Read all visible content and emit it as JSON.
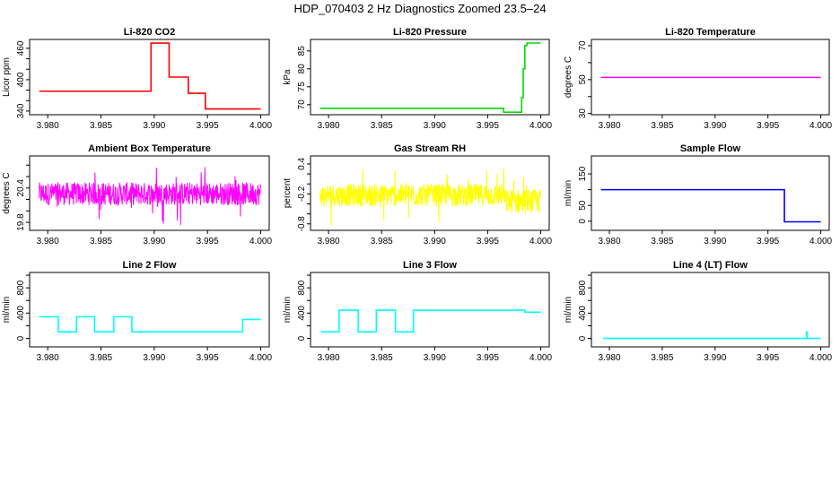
{
  "title": "HDP_070403  2 Hz Diagnostics Zoomed 23.5–24",
  "chart_data": [
    {
      "type": "line",
      "title": "Li-820 CO2",
      "ylabel": "Licor ppm",
      "xlabel": "",
      "color": "#ff0000",
      "xlim": [
        3.9783,
        4.0008
      ],
      "ylim": [
        333,
        477
      ],
      "x_ticks": [
        "3.980",
        "3.985",
        "3.990",
        "3.995",
        "4.000"
      ],
      "y_ticks": [
        340,
        360,
        380,
        400,
        420,
        440,
        460
      ],
      "y_tick_labels": [
        "340",
        "400",
        "460"
      ],
      "step_points": [
        [
          3.9792,
          378
        ],
        [
          3.9897,
          470
        ],
        [
          3.9914,
          405
        ],
        [
          3.9932,
          374
        ],
        [
          3.9948,
          344
        ],
        [
          3.9982,
          344
        ],
        [
          4.0,
          344
        ]
      ]
    },
    {
      "type": "line",
      "title": "Li-820 Pressure",
      "ylabel": "kPa",
      "xlabel": "",
      "color": "#00dd00",
      "xlim": [
        3.9783,
        4.0008
      ],
      "ylim": [
        67.2,
        88.2
      ],
      "x_ticks": [
        "3.980",
        "3.985",
        "3.990",
        "3.995",
        "4.000"
      ],
      "y_ticks": [
        70,
        75,
        80,
        85
      ],
      "y_tick_labels": [
        "70",
        "75",
        "80",
        "85"
      ],
      "step_points": [
        [
          3.9792,
          69.0
        ],
        [
          3.9965,
          67.9
        ],
        [
          3.9982,
          72.0
        ],
        [
          3.99835,
          80.0
        ],
        [
          3.9985,
          86.5
        ],
        [
          3.9987,
          87.2
        ],
        [
          4.0,
          87.2
        ]
      ]
    },
    {
      "type": "line",
      "title": "Li-820 Temperature",
      "ylabel": "degrees C",
      "xlabel": "",
      "color": "#ff00ff",
      "xlim": [
        3.9783,
        4.0008
      ],
      "ylim": [
        29.3,
        73.7
      ],
      "x_ticks": [
        "3.980",
        "3.985",
        "3.990",
        "3.995",
        "4.000"
      ],
      "y_ticks": [
        30,
        40,
        50,
        60,
        70
      ],
      "y_tick_labels": [
        "30",
        "50",
        "70"
      ],
      "step_points": [
        [
          3.9792,
          51.3
        ],
        [
          4.0,
          51.3
        ]
      ]
    },
    {
      "type": "line",
      "title": "Ambient Box Temperature",
      "ylabel": "degrees C",
      "xlabel": "",
      "color": "#ff00ff",
      "xlim": [
        3.9783,
        4.0008
      ],
      "ylim": [
        19.66,
        20.96
      ],
      "x_ticks": [
        "3.980",
        "3.985",
        "3.990",
        "3.995",
        "4.000"
      ],
      "y_ticks": [
        19.8,
        20.0,
        20.2,
        20.4,
        20.6,
        20.8
      ],
      "y_tick_labels": [
        "19.8",
        "20.4"
      ],
      "noisy": {
        "x_range": [
          3.9792,
          4.0
        ],
        "mean": 20.3,
        "typical_range": [
          20.1,
          20.5
        ],
        "extreme_range": [
          19.7,
          20.85
        ]
      }
    },
    {
      "type": "line",
      "title": "Gas Stream RH",
      "ylabel": "percent",
      "xlabel": "",
      "color": "#ffff00",
      "xlim": [
        3.9783,
        4.0008
      ],
      "ylim": [
        -0.93,
        0.56
      ],
      "x_ticks": [
        "3.980",
        "3.985",
        "3.990",
        "3.995",
        "4.000"
      ],
      "y_ticks": [
        -0.8,
        -0.6,
        -0.4,
        -0.2,
        0.0,
        0.2,
        0.4
      ],
      "y_tick_labels": [
        "-0.8",
        "-0.2",
        "0.4"
      ],
      "noisy": {
        "x_range": [
          3.9792,
          4.0
        ],
        "mean": -0.25,
        "typical_range": [
          -0.45,
          0.0
        ],
        "extreme_range": [
          -0.85,
          0.45
        ],
        "after": {
          "x": 3.9966,
          "mean": -0.4,
          "typical_range": [
            -0.6,
            -0.1
          ]
        }
      }
    },
    {
      "type": "line",
      "title": "Sample Flow",
      "ylabel": "ml/min",
      "xlabel": "",
      "color": "#0000ff",
      "xlim": [
        3.9783,
        4.0008
      ],
      "ylim": [
        -29,
        207
      ],
      "x_ticks": [
        "3.980",
        "3.985",
        "3.990",
        "3.995",
        "4.000"
      ],
      "y_ticks": [
        0,
        50,
        100,
        150
      ],
      "y_tick_labels": [
        "0",
        "50",
        "150"
      ],
      "step_points": [
        [
          3.9792,
          100
        ],
        [
          3.99656,
          -2
        ],
        [
          4.0,
          -2
        ]
      ]
    },
    {
      "type": "line",
      "title": "Line 2 Flow",
      "ylabel": "ml/min",
      "xlabel": "",
      "color": "#00ffff",
      "xlim": [
        3.9783,
        4.0008
      ],
      "ylim": [
        -134,
        1043
      ],
      "x_ticks": [
        "3.980",
        "3.985",
        "3.990",
        "3.995",
        "4.000"
      ],
      "y_ticks": [
        0,
        200,
        400,
        600,
        800,
        1000
      ],
      "y_tick_labels": [
        "0",
        "400",
        "800"
      ],
      "step_points": [
        [
          3.9792,
          343
        ],
        [
          3.981,
          104
        ],
        [
          3.9827,
          343
        ],
        [
          3.9844,
          104
        ],
        [
          3.9862,
          343
        ],
        [
          3.9879,
          104
        ],
        [
          3.9983,
          300
        ],
        [
          4.0,
          300
        ]
      ]
    },
    {
      "type": "line",
      "title": "Line 3 Flow",
      "ylabel": "ml/min",
      "xlabel": "",
      "color": "#00ffff",
      "xlim": [
        3.9783,
        4.0008
      ],
      "ylim": [
        -134,
        1043
      ],
      "x_ticks": [
        "3.980",
        "3.985",
        "3.990",
        "3.995",
        "4.000"
      ],
      "y_ticks": [
        0,
        200,
        400,
        600,
        800,
        1000
      ],
      "y_tick_labels": [
        "0",
        "400",
        "800"
      ],
      "step_points": [
        [
          3.9793,
          104
        ],
        [
          3.981,
          447
        ],
        [
          3.9828,
          104
        ],
        [
          3.9845,
          447
        ],
        [
          3.9863,
          104
        ],
        [
          3.988,
          447
        ],
        [
          3.9985,
          414
        ],
        [
          4.0,
          414
        ]
      ]
    },
    {
      "type": "line",
      "title": "Line 4 (LT) Flow",
      "ylabel": "ml/min",
      "xlabel": "",
      "color": "#00ffff",
      "xlim": [
        3.9783,
        4.0008
      ],
      "ylim": [
        -134,
        1043
      ],
      "x_ticks": [
        "3.980",
        "3.985",
        "3.990",
        "3.995",
        "4.000"
      ],
      "y_ticks": [
        0,
        200,
        400,
        600,
        800,
        1000
      ],
      "y_tick_labels": [
        "0",
        "400",
        "800"
      ],
      "step_points": [
        [
          3.9794,
          0
        ],
        [
          3.99865,
          104
        ],
        [
          3.9987,
          0
        ],
        [
          4.0,
          0
        ]
      ]
    }
  ]
}
